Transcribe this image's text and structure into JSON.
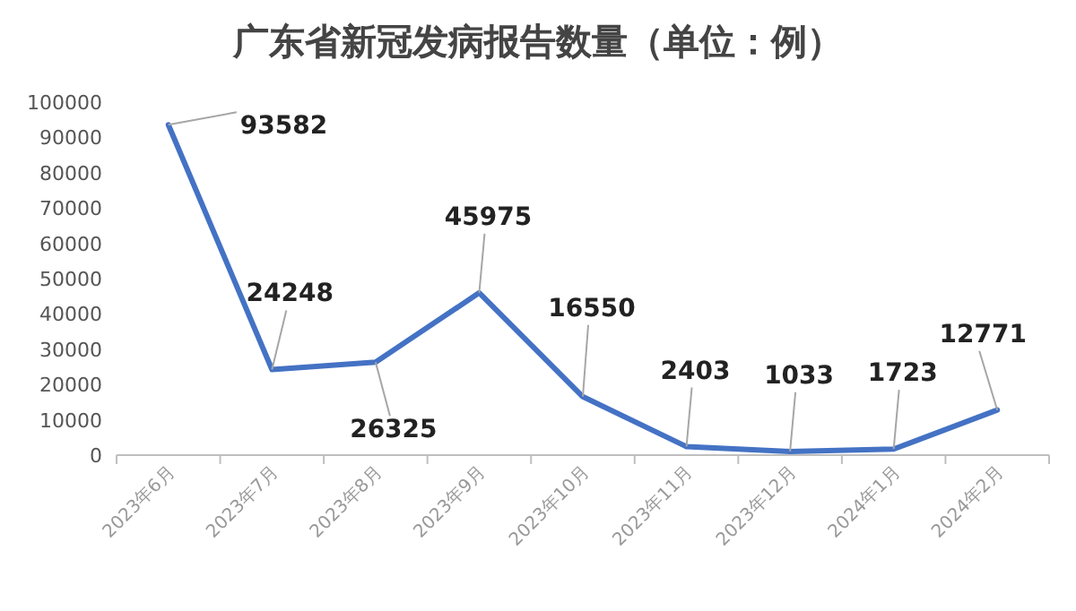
{
  "chart_data": {
    "type": "line",
    "title": "广东省新冠发病报告数量（单位：例）",
    "categories": [
      "2023年6月",
      "2023年7月",
      "2023年8月",
      "2023年9月",
      "2023年10月",
      "2023年11月",
      "2023年12月",
      "2024年1月",
      "2024年2月"
    ],
    "values": [
      93582,
      24248,
      26325,
      45975,
      16550,
      2403,
      1033,
      1723,
      12771
    ],
    "color": "#4472c4",
    "ylim": [
      0,
      100000
    ],
    "yticks": [
      0,
      10000,
      20000,
      30000,
      40000,
      50000,
      60000,
      70000,
      80000,
      90000,
      100000
    ],
    "data_labels": true,
    "marker": "none",
    "line_style": "solid",
    "grid": false
  }
}
